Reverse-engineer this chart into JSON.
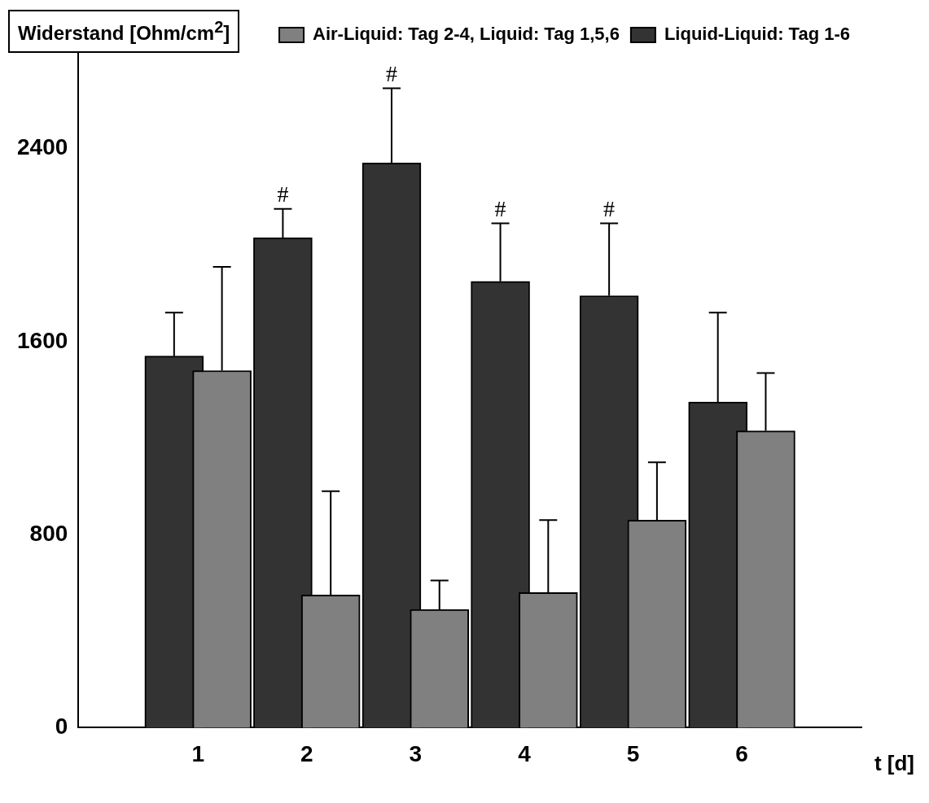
{
  "chart_data": {
    "type": "bar",
    "ylabel": "Widerstand [Ohm/cm$^{2}$]",
    "xlabel": "t [d]",
    "categories": [
      "1",
      "2",
      "3",
      "4",
      "5",
      "6"
    ],
    "series": [
      {
        "name": "Air-Liquid: Tag 2-4, Liquid: Tag 1,5,6",
        "color": "#808080",
        "values": [
          1480,
          550,
          490,
          560,
          860,
          1230
        ],
        "errors": [
          430,
          430,
          120,
          300,
          240,
          240
        ]
      },
      {
        "name": "Liquid-Liquid: Tag 1-6",
        "color": "#333333",
        "values": [
          1540,
          2030,
          2340,
          1850,
          1790,
          1350
        ],
        "errors": [
          180,
          120,
          310,
          240,
          300,
          370
        ]
      }
    ],
    "ylim": [
      0,
      2800
    ],
    "yticks": [
      0,
      800,
      1600,
      2400
    ],
    "grid": false,
    "legend": "top right",
    "annotations": [
      "#",
      "#",
      "#",
      "#"
    ]
  }
}
